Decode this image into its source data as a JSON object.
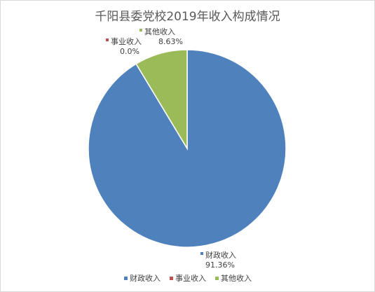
{
  "chart_data": {
    "type": "pie",
    "title": "千阳县委党校2019年收入构成情况",
    "categories": [
      "财政收入",
      "事业收入",
      "其他收入"
    ],
    "values": [
      91.36,
      0.0,
      8.63
    ],
    "value_labels": [
      "91.36%",
      "0.0%",
      "8.63%"
    ],
    "colors": [
      "#4f81bd",
      "#c0504d",
      "#9bbb59"
    ],
    "legend_position": "bottom",
    "start_angle_deg": 0,
    "direction": "clockwise"
  }
}
